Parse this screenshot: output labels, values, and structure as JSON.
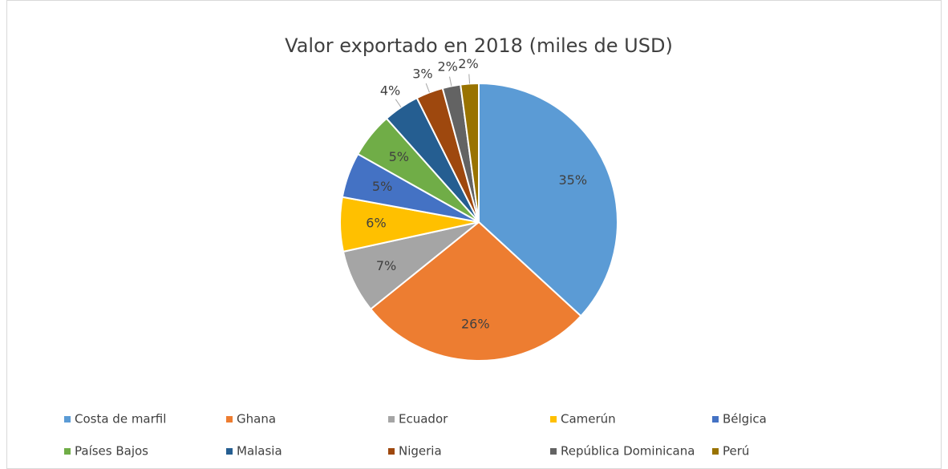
{
  "chart_data": {
    "type": "pie",
    "title": "Valor exportado en 2018 (miles de USD)",
    "categories": [
      "Costa de marfil",
      "Ghana",
      "Ecuador",
      "Camerún",
      "Bélgica",
      "Países Bajos",
      "Malasia",
      "Nigeria",
      "República Dominicana",
      "Perú"
    ],
    "values": [
      35,
      26,
      7,
      6,
      5,
      5,
      4,
      3,
      2,
      2
    ],
    "value_labels": [
      "35%",
      "26%",
      "7%",
      "6%",
      "5%",
      "5%",
      "4%",
      "3%",
      "2%",
      "2%"
    ],
    "colors": [
      "#5b9bd5",
      "#ed7d31",
      "#a5a5a5",
      "#ffc000",
      "#4472c4",
      "#70ad47",
      "#255e91",
      "#9e480e",
      "#636363",
      "#997300"
    ],
    "legend": "bottom"
  }
}
